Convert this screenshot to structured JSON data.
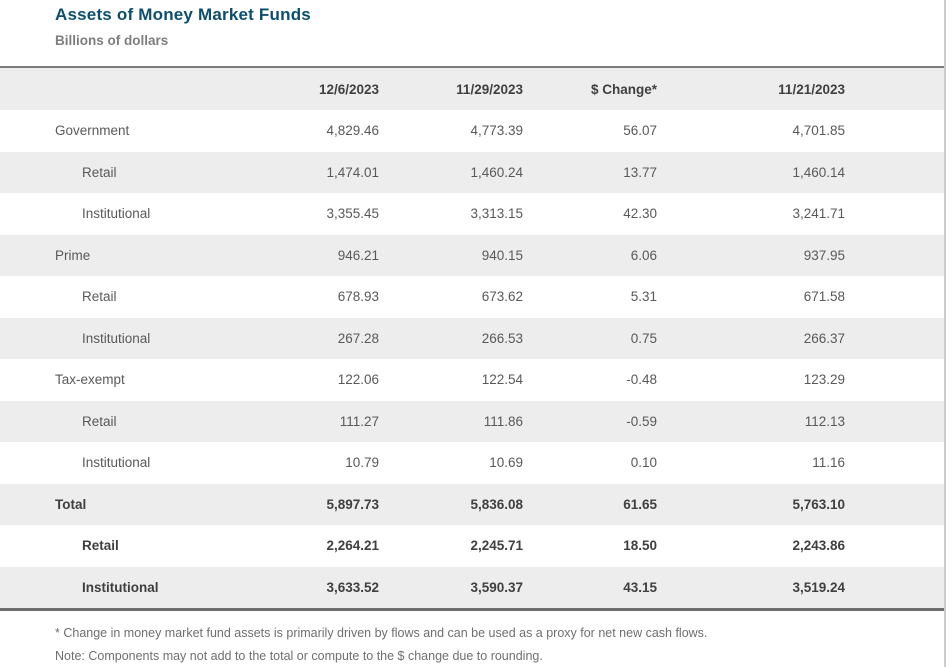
{
  "title": "Assets of Money Market Funds",
  "subtitle": "Billions of dollars",
  "colors": {
    "title_blue": "#0e4e6d",
    "stripe_gray": "#ededed",
    "top_border": "#7c7c7c",
    "bottom_border": "#6e6e6e",
    "body_text": "#595959",
    "bold_text": "#3f3f3f",
    "subtitle_gray": "#7e7e7e"
  },
  "table": {
    "columns": [
      "",
      "12/6/2023",
      "11/29/2023",
      "$ Change*",
      "11/21/2023"
    ],
    "rows": [
      {
        "label": "Government",
        "indent": 0,
        "bold": false,
        "values": [
          "4,829.46",
          "4,773.39",
          "56.07",
          "4,701.85"
        ]
      },
      {
        "label": "Retail",
        "indent": 1,
        "bold": false,
        "values": [
          "1,474.01",
          "1,460.24",
          "13.77",
          "1,460.14"
        ]
      },
      {
        "label": "Institutional",
        "indent": 1,
        "bold": false,
        "values": [
          "3,355.45",
          "3,313.15",
          "42.30",
          "3,241.71"
        ]
      },
      {
        "label": "Prime",
        "indent": 0,
        "bold": false,
        "values": [
          "946.21",
          "940.15",
          "6.06",
          "937.95"
        ]
      },
      {
        "label": "Retail",
        "indent": 1,
        "bold": false,
        "values": [
          "678.93",
          "673.62",
          "5.31",
          "671.58"
        ]
      },
      {
        "label": "Institutional",
        "indent": 1,
        "bold": false,
        "values": [
          "267.28",
          "266.53",
          "0.75",
          "266.37"
        ]
      },
      {
        "label": "Tax-exempt",
        "indent": 0,
        "bold": false,
        "values": [
          "122.06",
          "122.54",
          "-0.48",
          "123.29"
        ]
      },
      {
        "label": "Retail",
        "indent": 1,
        "bold": false,
        "values": [
          "111.27",
          "111.86",
          "-0.59",
          "112.13"
        ]
      },
      {
        "label": "Institutional",
        "indent": 1,
        "bold": false,
        "values": [
          "10.79",
          "10.69",
          "0.10",
          "11.16"
        ]
      },
      {
        "label": "Total",
        "indent": 0,
        "bold": true,
        "values": [
          "5,897.73",
          "5,836.08",
          "61.65",
          "5,763.10"
        ]
      },
      {
        "label": "Retail",
        "indent": 1,
        "bold": true,
        "values": [
          "2,264.21",
          "2,245.71",
          "18.50",
          "2,243.86"
        ]
      },
      {
        "label": "Institutional",
        "indent": 1,
        "bold": true,
        "values": [
          "3,633.52",
          "3,590.37",
          "43.15",
          "3,519.24"
        ]
      }
    ]
  },
  "footnotes": [
    "* Change in money market fund assets is primarily driven by flows and can be used as a proxy for net new cash flows.",
    "Note: Components may not add to the total or compute to the $ change due to rounding."
  ],
  "chart_data": {
    "type": "table",
    "title": "Assets of Money Market Funds",
    "subtitle": "Billions of dollars",
    "columns": [
      "12/6/2023",
      "11/29/2023",
      "$ Change*",
      "11/21/2023"
    ],
    "series": [
      {
        "name": "Government",
        "values": [
          4829.46,
          4773.39,
          56.07,
          4701.85
        ]
      },
      {
        "name": "Government Retail",
        "values": [
          1474.01,
          1460.24,
          13.77,
          1460.14
        ]
      },
      {
        "name": "Government Institutional",
        "values": [
          3355.45,
          3313.15,
          42.3,
          3241.71
        ]
      },
      {
        "name": "Prime",
        "values": [
          946.21,
          940.15,
          6.06,
          937.95
        ]
      },
      {
        "name": "Prime Retail",
        "values": [
          678.93,
          673.62,
          5.31,
          671.58
        ]
      },
      {
        "name": "Prime Institutional",
        "values": [
          267.28,
          266.53,
          0.75,
          266.37
        ]
      },
      {
        "name": "Tax-exempt",
        "values": [
          122.06,
          122.54,
          -0.48,
          123.29
        ]
      },
      {
        "name": "Tax-exempt Retail",
        "values": [
          111.27,
          111.86,
          -0.59,
          112.13
        ]
      },
      {
        "name": "Tax-exempt Institutional",
        "values": [
          10.79,
          10.69,
          0.1,
          11.16
        ]
      },
      {
        "name": "Total",
        "values": [
          5897.73,
          5836.08,
          61.65,
          5763.1
        ]
      },
      {
        "name": "Total Retail",
        "values": [
          2264.21,
          2245.71,
          18.5,
          2243.86
        ]
      },
      {
        "name": "Total Institutional",
        "values": [
          3633.52,
          3590.37,
          43.15,
          3519.24
        ]
      }
    ]
  }
}
